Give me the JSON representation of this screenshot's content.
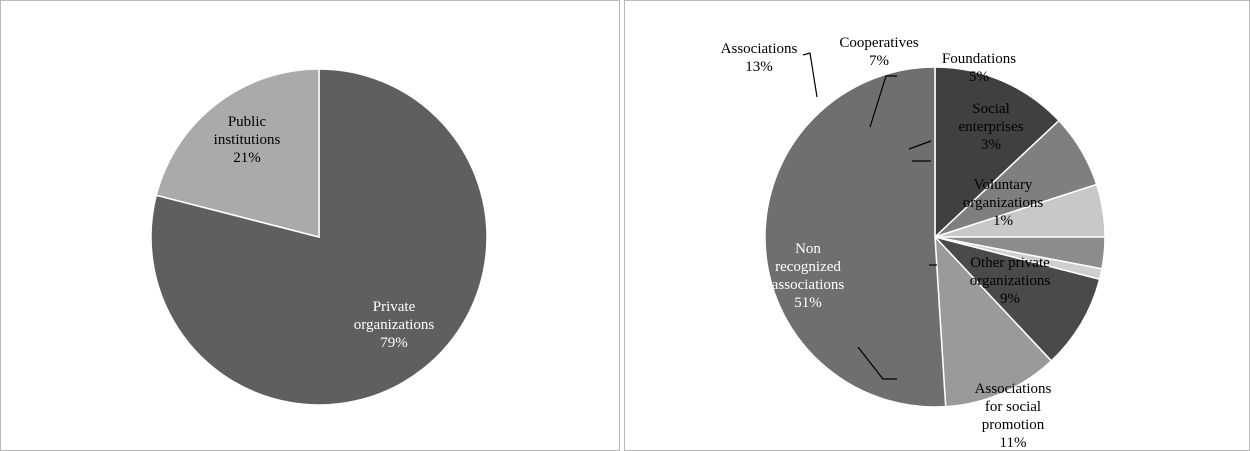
{
  "chart_data": [
    {
      "type": "pie",
      "title": "",
      "slices": [
        {
          "label": "Private organizations",
          "lines": [
            "Private",
            "organizations",
            "79%"
          ],
          "value": 79,
          "color": "#5f5f5f",
          "text_color": "#ffffff"
        },
        {
          "label": "Public institutions",
          "lines": [
            "Public",
            "institutions",
            "21%"
          ],
          "value": 21,
          "color": "#aaaaaa",
          "text_color": "#000000"
        }
      ]
    },
    {
      "type": "pie",
      "title": "",
      "slices": [
        {
          "label": "Associations",
          "lines": [
            "Associations",
            "13%"
          ],
          "value": 13,
          "color": "#404040",
          "text_color": "#000000"
        },
        {
          "label": "Cooperatives",
          "lines": [
            "Cooperatives",
            "7%"
          ],
          "value": 7,
          "color": "#7f7f7f",
          "text_color": "#000000"
        },
        {
          "label": "Foundations",
          "lines": [
            "Foundations",
            "5%"
          ],
          "value": 5,
          "color": "#c8c8c8",
          "text_color": "#000000"
        },
        {
          "label": "Social enterprises",
          "lines": [
            "Social",
            "enterprises",
            "3%"
          ],
          "value": 3,
          "color": "#8c8c8c",
          "text_color": "#000000"
        },
        {
          "label": "Voluntary organizations",
          "lines": [
            "Voluntary",
            "organizations",
            "1%"
          ],
          "value": 1,
          "color": "#cfcfcf",
          "text_color": "#000000"
        },
        {
          "label": "Other private organizations",
          "lines": [
            "Other private",
            "organizations",
            "9%"
          ],
          "value": 9,
          "color": "#4a4a4a",
          "text_color": "#000000"
        },
        {
          "label": "Associations for social promotion",
          "lines": [
            "Associations",
            "for social",
            "promotion",
            "11%"
          ],
          "value": 11,
          "color": "#9a9a9a",
          "text_color": "#000000"
        },
        {
          "label": "Non recognized associations",
          "lines": [
            "Non",
            "recognized",
            "associations",
            "51%"
          ],
          "value": 51,
          "color": "#6f6f6f",
          "text_color": "#ffffff"
        }
      ]
    }
  ]
}
